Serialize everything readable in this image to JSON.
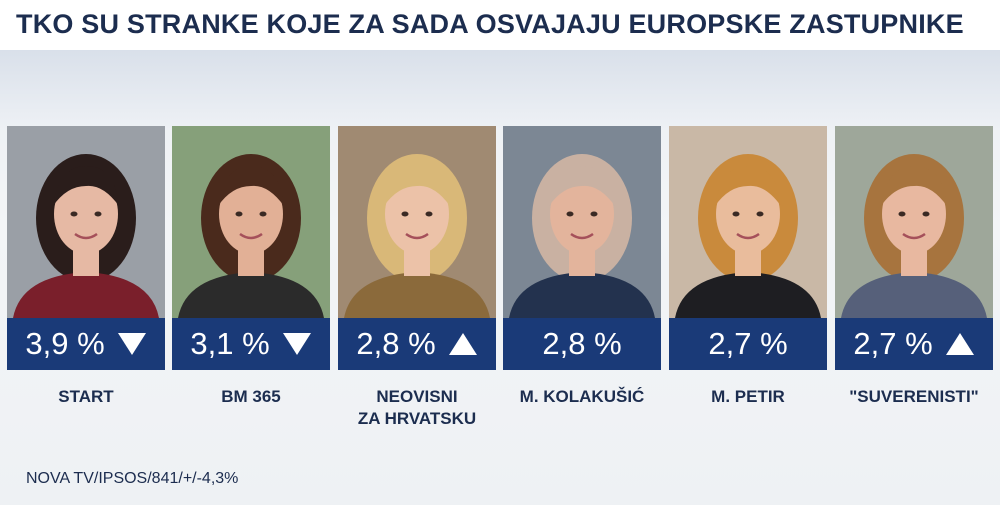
{
  "title": "TKO SU STRANKE KOJE ZA SADA OSVAJAJU EUROPSKE ZASTUPNIKE",
  "source": "NOVA TV/IPSOS/841/+/-4,3%",
  "colors": {
    "bar": "#1a3a78",
    "title": "#1c2d4f",
    "background": "#eef1f4"
  },
  "chart_data": {
    "type": "bar",
    "title": "TKO SU STRANKE KOJE ZA SADA OSVAJAJU EUROPSKE ZASTUPNIKE",
    "unit": "%",
    "categories": [
      "START",
      "BM 365",
      "NEOVISNI ZA HRVATSKU",
      "M. KOLAKUŠIĆ",
      "M. PETIR",
      "\"SUVERENISTI\""
    ],
    "values": [
      3.9,
      3.1,
      2.8,
      2.8,
      2.7,
      2.7
    ],
    "trends": [
      "down",
      "down",
      "up",
      "none",
      "none",
      "up"
    ]
  },
  "cards": [
    {
      "value_text": "3,9 %",
      "trend": "down",
      "label_lines": [
        "START"
      ],
      "photo_bg": "#9a9fa6",
      "hair": "#2a1d1b",
      "top": "#7a1f2b",
      "skin": "#e6b9a4"
    },
    {
      "value_text": "3,1 %",
      "trend": "down",
      "label_lines": [
        "BM 365"
      ],
      "photo_bg": "#86a07a",
      "hair": "#4a2a1c",
      "top": "#2b2b2b",
      "skin": "#e2b096"
    },
    {
      "value_text": "2,8 %",
      "trend": "up",
      "label_lines": [
        "NEOVISNI",
        "ZA HRVATSKU"
      ],
      "photo_bg": "#a08a72",
      "hair": "#d9b878",
      "top": "#8b6a3b",
      "skin": "#ecc2a8"
    },
    {
      "value_text": "2,8 %",
      "trend": "none",
      "label_lines": [
        "M. KOLAKUŠIĆ"
      ],
      "photo_bg": "#7c8794",
      "hair": "#c9b1a2",
      "top": "#23324e",
      "skin": "#e3b49c"
    },
    {
      "value_text": "2,7 %",
      "trend": "none",
      "label_lines": [
        "M. PETIR"
      ],
      "photo_bg": "#c9b8a6",
      "hair": "#c98a3c",
      "top": "#1e1e22",
      "skin": "#e9bc9c"
    },
    {
      "value_text": "2,7 %",
      "trend": "up",
      "label_lines": [
        "\"SUVERENISTI\""
      ],
      "photo_bg": "#9ea79a",
      "hair": "#a7743e",
      "top": "#56607a",
      "skin": "#e8b8a0"
    }
  ]
}
